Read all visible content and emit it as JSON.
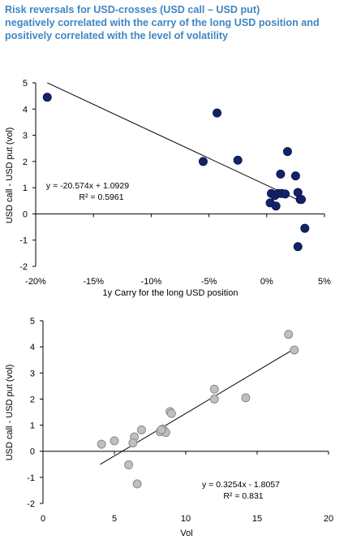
{
  "title_lines": [
    "Risk reversals for USD-crosses (USD call – USD put)",
    "negatively correlated with the carry of the long USD position and",
    "positively correlated with the level of volatility"
  ],
  "chart_data": [
    {
      "type": "scatter",
      "title": "",
      "xlabel": "1y Carry for the long USD position",
      "ylabel": "USD call - USD put (vol)",
      "xlim": [
        -0.2,
        0.05
      ],
      "ylim": [
        -2,
        5
      ],
      "x_tick_labels": [
        "-20%",
        "-15%",
        "-10%",
        "-5%",
        "0%",
        "5%"
      ],
      "y_tick_labels": [
        "-2",
        "-1",
        "0",
        "1",
        "2",
        "3",
        "4",
        "5"
      ],
      "marker_color": "#13226b",
      "x": [
        -0.19,
        -0.043,
        -0.055,
        -0.025,
        0.018,
        0.025,
        0.012,
        0.004,
        0.007,
        0.01,
        0.013,
        0.016,
        0.027,
        0.029,
        0.003,
        0.008,
        0.033,
        0.03,
        0.027
      ],
      "y": [
        4.45,
        3.85,
        2.0,
        2.05,
        2.38,
        1.45,
        1.52,
        0.78,
        0.7,
        0.78,
        0.78,
        0.76,
        0.82,
        0.55,
        0.42,
        0.3,
        -0.55,
        0.55,
        -1.25
      ],
      "trendline": {
        "slope": -20.574,
        "intercept": 1.0929,
        "x_range": [
          -0.19,
          0.03
        ]
      },
      "annotation": [
        "y = -20.574x + 1.0929",
        "R² = 0.5961"
      ]
    },
    {
      "type": "scatter",
      "title": "",
      "xlabel": "Vol",
      "ylabel": "USD call - USD put (vol)",
      "xlim": [
        0,
        20
      ],
      "ylim": [
        -2,
        5
      ],
      "x_tick_labels": [
        "0",
        "5",
        "10",
        "15",
        "20"
      ],
      "y_tick_labels": [
        "-2",
        "-1",
        "0",
        "1",
        "2",
        "3",
        "4",
        "5"
      ],
      "marker_color": "#bfbfbf",
      "x": [
        17.2,
        17.6,
        12.0,
        12.0,
        14.2,
        8.9,
        9.0,
        8.2,
        8.4,
        8.6,
        6.9,
        6.4,
        6.3,
        5.0,
        4.1,
        6.0,
        6.6,
        8.3
      ],
      "y": [
        4.48,
        3.88,
        2.38,
        2.0,
        2.05,
        1.52,
        1.45,
        0.75,
        0.85,
        0.72,
        0.82,
        0.55,
        0.32,
        0.4,
        0.27,
        -0.52,
        -1.25,
        0.82
      ],
      "trendline": {
        "slope": 0.3254,
        "intercept": -1.8057,
        "x_range": [
          4.0,
          17.5
        ]
      },
      "annotation": [
        "y = 0.3254x - 1.8057",
        "R² = 0.831"
      ]
    }
  ]
}
